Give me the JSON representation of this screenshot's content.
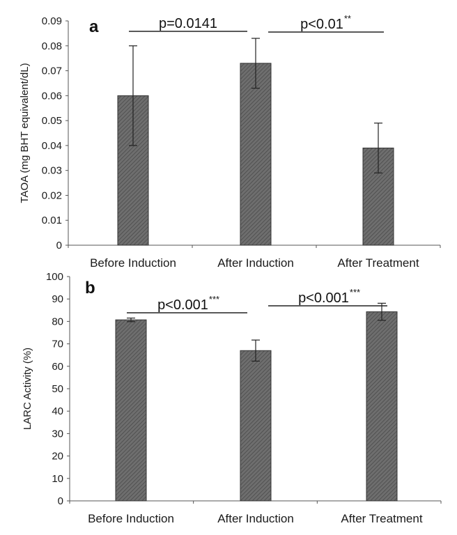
{
  "chart_data": [
    {
      "type": "bar",
      "panel_label": "a",
      "categories": [
        "Before Induction",
        "After Induction",
        "After Treatment"
      ],
      "values": [
        0.06,
        0.073,
        0.039
      ],
      "errors": [
        0.02,
        0.01,
        0.01
      ],
      "ylabel": "TAOA (mg BHT equivalent/dL)",
      "ylim": [
        0,
        0.09
      ],
      "yticks": [
        "0",
        "0.01",
        "0.02",
        "0.03",
        "0.04",
        "0.05",
        "0.06",
        "0.07",
        "0.08",
        "0.09"
      ],
      "comparisons": [
        {
          "from": 0,
          "to": 1,
          "text": "p=0.0141",
          "stars": ""
        },
        {
          "from": 1,
          "to": 2,
          "text": "p<0.01",
          "stars": "**"
        }
      ]
    },
    {
      "type": "bar",
      "panel_label": "b",
      "categories": [
        "Before Induction",
        "After Induction",
        "After Treatment"
      ],
      "values": [
        80.7,
        67,
        84.3
      ],
      "errors": [
        0.8,
        4.7,
        3.8
      ],
      "ylabel": "LARC Activity (%)",
      "ylim": [
        0,
        100
      ],
      "yticks": [
        "0",
        "10",
        "20",
        "30",
        "40",
        "50",
        "60",
        "70",
        "80",
        "90",
        "100"
      ],
      "comparisons": [
        {
          "from": 0,
          "to": 1,
          "text": "p<0.001",
          "stars": "***"
        },
        {
          "from": 1,
          "to": 2,
          "text": "p<0.001",
          "stars": "***"
        }
      ]
    }
  ]
}
